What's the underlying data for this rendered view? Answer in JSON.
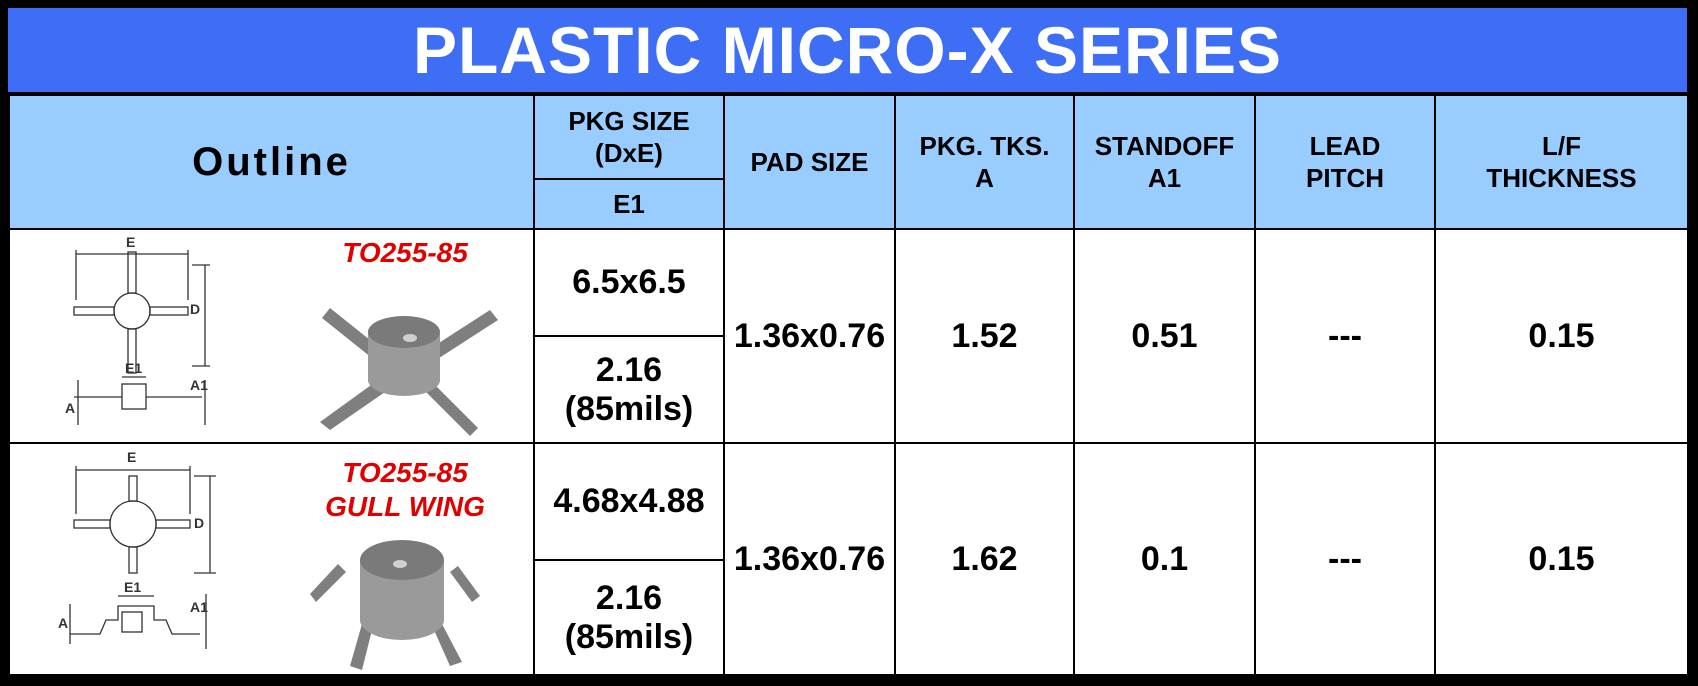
{
  "title": "PLASTIC MICRO-X SERIES",
  "headers": {
    "outline": "Outline",
    "pkg_size_line1": "PKG SIZE",
    "pkg_size_line2": "(DxE)",
    "pkg_size_sub": "E1",
    "pad_size": "PAD SIZE",
    "pkg_tks_line1": "PKG. TKS.",
    "pkg_tks_line2": "A",
    "standoff_line1": "STANDOFF",
    "standoff_line2": "A1",
    "lead_pitch_line1": "LEAD",
    "lead_pitch_line2": "PITCH",
    "lf_line1": "L/F",
    "lf_line2": "THICKNESS"
  },
  "drawing_labels": {
    "e": "E",
    "d": "D",
    "e1": "E1",
    "a": "A",
    "a1": "A1"
  },
  "rows": [
    {
      "name_line1": "TO255-85",
      "name_line2": "",
      "pkg_size": "6.5x6.5",
      "e1_line1": "2.16",
      "e1_line2": "(85mils)",
      "pad_size": "1.36x0.76",
      "pkg_tks": "1.52",
      "standoff": "0.51",
      "lead_pitch": "---",
      "lf_thickness": "0.15"
    },
    {
      "name_line1": "TO255-85",
      "name_line2": "GULL WING",
      "pkg_size": "4.68x4.88",
      "e1_line1": "2.16",
      "e1_line2": "(85mils)",
      "pad_size": "1.36x0.76",
      "pkg_tks": "1.62",
      "standoff": "0.1",
      "lead_pitch": "---",
      "lf_thickness": "0.15"
    }
  ]
}
